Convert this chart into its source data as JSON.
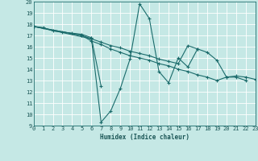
{
  "xlabel": "Humidex (Indice chaleur)",
  "xlim": [
    0,
    23
  ],
  "ylim": [
    9,
    20
  ],
  "bg_color": "#c5e8e5",
  "grid_color": "#b0d8d5",
  "line_color": "#1a6b6b",
  "series": [
    {
      "x": [
        0,
        1,
        2,
        3,
        4,
        5,
        6
      ],
      "y": [
        17.8,
        17.7,
        17.4,
        17.3,
        17.2,
        17.1,
        16.8
      ]
    },
    {
      "x": [
        6,
        7
      ],
      "y": [
        16.8,
        12.5
      ]
    },
    {
      "x": [
        0,
        6,
        7,
        8,
        9,
        10,
        11,
        12,
        13,
        14,
        15,
        16,
        17
      ],
      "y": [
        17.8,
        16.7,
        9.3,
        10.3,
        12.3,
        14.9,
        19.8,
        18.5,
        13.8,
        12.8,
        15.0,
        14.2,
        15.8
      ]
    },
    {
      "x": [
        0,
        5,
        6,
        7,
        8,
        9,
        10,
        11,
        12,
        13,
        14,
        15,
        16,
        17,
        18,
        19,
        20,
        21,
        22
      ],
      "y": [
        17.8,
        17.0,
        16.5,
        16.2,
        15.8,
        15.5,
        15.2,
        15.0,
        14.8,
        14.5,
        14.3,
        14.0,
        13.8,
        13.5,
        13.3,
        13.0,
        13.3,
        13.3,
        13.0
      ]
    },
    {
      "x": [
        0,
        5,
        6,
        7,
        8,
        9,
        10,
        11,
        12,
        13,
        14,
        15,
        16,
        17,
        18,
        19,
        20,
        21,
        22,
        23
      ],
      "y": [
        17.8,
        17.0,
        16.7,
        16.4,
        16.1,
        15.9,
        15.6,
        15.4,
        15.2,
        14.9,
        14.7,
        14.5,
        16.1,
        15.8,
        15.5,
        14.8,
        13.3,
        13.4,
        13.3,
        13.1
      ]
    }
  ]
}
